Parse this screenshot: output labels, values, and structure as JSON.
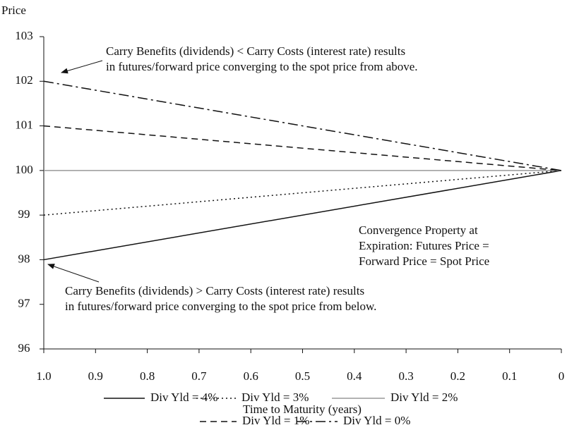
{
  "chart_data": {
    "type": "line",
    "y_label": "Price",
    "x_label": "Time to Maturity (years)",
    "xlim": [
      1.0,
      0
    ],
    "xticks": [
      {
        "value": 1.0,
        "label": "1.0"
      },
      0.9,
      0.8,
      0.7,
      0.6,
      0.5,
      0.4,
      0.3,
      0.2,
      0.1,
      0
    ],
    "ylim": [
      96,
      103
    ],
    "yticks": [
      96,
      97,
      98,
      99,
      100,
      101,
      102,
      103
    ],
    "x": [
      1.0,
      0
    ],
    "series": [
      {
        "name": "Div Yld = 4%",
        "color": "#111111",
        "dash": "solid",
        "values": [
          98,
          100
        ]
      },
      {
        "name": "Div Yld = 3%",
        "color": "#111111",
        "dash": "dotted",
        "values": [
          99,
          100
        ]
      },
      {
        "name": "Div Yld = 2%",
        "color": "#999999",
        "dash": "solid",
        "values": [
          100,
          100
        ]
      },
      {
        "name": "Div Yld = 1%",
        "color": "#111111",
        "dash": "dashed",
        "values": [
          101,
          100
        ]
      },
      {
        "name": "Div Yld = 0%",
        "color": "#111111",
        "dash": "dashdot",
        "values": [
          102,
          100
        ]
      }
    ],
    "annotations": [
      {
        "lines": [
          "Carry Benefits (dividends) < Carry Costs (interest rate) results",
          "in futures/forward price converging to the spot price from above."
        ]
      },
      {
        "lines": [
          "Convergence Property at",
          "Expiration: Futures Price =",
          "Forward Price = Spot Price"
        ]
      },
      {
        "lines": [
          "Carry Benefits (dividends) > Carry Costs (interest rate) results",
          "in futures/forward price converging to the spot price from below."
        ]
      }
    ]
  }
}
